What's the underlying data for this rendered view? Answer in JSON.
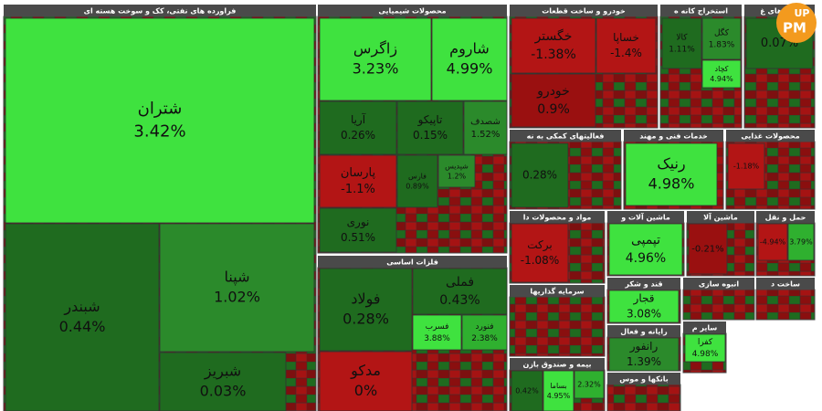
{
  "sectors": [
    {
      "title": "فراورده های نفتی، کک و سوخت هسته ای",
      "tiles": [
        {
          "name": "شتران",
          "change": "3.42%",
          "color": "#3fe23f"
        },
        {
          "name": "شبندر",
          "change": "0.44%",
          "color": "#1f6b1f"
        },
        {
          "name": "شپنا",
          "change": "1.02%",
          "color": "#2b8a2b"
        },
        {
          "name": "شبریز",
          "change": "0.03%",
          "color": "#1f6b1f"
        }
      ]
    },
    {
      "title": "محصولات شیمیایی",
      "tiles": [
        {
          "name": "زاگرس",
          "change": "3.23%",
          "color": "#3fe23f"
        },
        {
          "name": "شاروم",
          "change": "4.99%",
          "color": "#3fe23f"
        },
        {
          "name": "آریا",
          "change": "0.26%",
          "color": "#1f6b1f"
        },
        {
          "name": "تاپیکو",
          "change": "0.15%",
          "color": "#1f6b1f"
        },
        {
          "name": "شصدف",
          "change": "1.52%",
          "color": "#2b8a2b"
        },
        {
          "name": "پارسان",
          "change": "-1.1%",
          "color": "#b31515"
        },
        {
          "name": "فارس",
          "change": "0.89%",
          "color": "#1f6b1f"
        },
        {
          "name": "شپدیس",
          "change": "1.2%",
          "color": "#2b8a2b"
        },
        {
          "name": "نوری",
          "change": "0.51%",
          "color": "#1f6b1f"
        }
      ]
    },
    {
      "title": "فلزات اساسی",
      "tiles": [
        {
          "name": "فولاد",
          "change": "0.28%",
          "color": "#1f6b1f"
        },
        {
          "name": "فملی",
          "change": "0.43%",
          "color": "#1f6b1f"
        },
        {
          "name": "فسرب",
          "change": "3.88%",
          "color": "#3fe23f"
        },
        {
          "name": "فنورد",
          "change": "2.38%",
          "color": "#2fb02f"
        },
        {
          "name": "مدکو",
          "change": "0%",
          "color": "#b31515"
        }
      ]
    },
    {
      "title": "خودرو و ساخت قطعات",
      "tiles": [
        {
          "name": "خگستر",
          "change": "-1.38%",
          "color": "#b31515"
        },
        {
          "name": "خساپا",
          "change": "-1.4%",
          "color": "#b31515"
        },
        {
          "name": "خودرو",
          "change": "0.9%",
          "color": "#9a1010"
        }
      ]
    },
    {
      "title": "استخراج کانه ه",
      "tiles": [
        {
          "name": "کالا",
          "change": "1.11%",
          "color": "#1f6b1f"
        },
        {
          "name": "کگل",
          "change": "1.83%",
          "color": "#2b8a2b"
        },
        {
          "name": "کچاد",
          "change": "4.94%",
          "color": "#3fe23f"
        }
      ]
    },
    {
      "title": "کانه های غ",
      "tiles": [
        {
          "change": "0.07%",
          "color": "#1f6b1f"
        }
      ]
    },
    {
      "title": "فعالیتهای کمکی به نه",
      "tiles": [
        {
          "change": "0.28%",
          "color": "#1f6b1f"
        }
      ]
    },
    {
      "title": "خدمات فنی و مهند",
      "tiles": [
        {
          "name": "رنیک",
          "change": "4.98%",
          "color": "#3fe23f"
        }
      ]
    },
    {
      "title": "محصولات غذایی",
      "tiles": [
        {
          "change": "-1.18%",
          "color": "#b31515"
        }
      ]
    },
    {
      "title": "مواد و محصولات دا",
      "tiles": [
        {
          "name": "برکت",
          "change": "-1.08%",
          "color": "#b31515"
        }
      ]
    },
    {
      "title": "ماشین آلات و",
      "tiles": [
        {
          "name": "تپمپی",
          "change": "4.96%",
          "color": "#3fe23f"
        }
      ]
    },
    {
      "title": "ماشین آلا",
      "tiles": [
        {
          "change": "-0.21%",
          "color": "#9a1010"
        }
      ]
    },
    {
      "title": "حمل و نقل",
      "tiles": [
        {
          "change": "-4.94%",
          "color": "#b31515"
        },
        {
          "change": "3.79%",
          "color": "#2fb02f"
        }
      ]
    },
    {
      "title": "سرمایه گذاریها",
      "tiles": []
    },
    {
      "title": "قند و شکر",
      "tiles": [
        {
          "name": "قجار",
          "change": "3.08%",
          "color": "#3fe23f"
        }
      ]
    },
    {
      "title": "انبوه سازی",
      "tiles": []
    },
    {
      "title": "ساخت د",
      "tiles": []
    },
    {
      "title": "رایانه و فعال",
      "tiles": [
        {
          "name": "رانفور",
          "change": "1.39%",
          "color": "#2b8a2b"
        }
      ]
    },
    {
      "title": "سایر م",
      "tiles": [
        {
          "name": "کفرا",
          "change": "4.98%",
          "color": "#3fe23f"
        }
      ]
    },
    {
      "title": "بیمه و صندوق بازن",
      "tiles": [
        {
          "change": "0.42%",
          "color": "#1f6b1f"
        },
        {
          "name": "بساما",
          "change": "4.95%",
          "color": "#3fe23f"
        },
        {
          "change": "2.32%",
          "color": "#2fb02f"
        }
      ]
    },
    {
      "title": "بانکها و موس",
      "tiles": []
    }
  ],
  "watermark": {
    "top": "UP",
    "bottom": "PM"
  }
}
